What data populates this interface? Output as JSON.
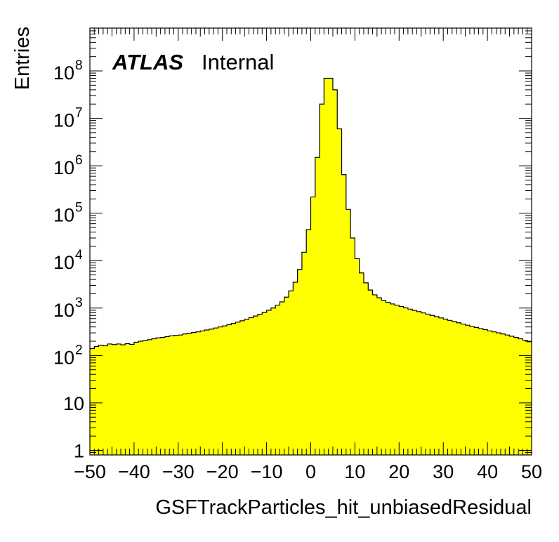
{
  "chart_data": {
    "type": "histogram",
    "title": "",
    "xlabel": "GSFTrackParticles_hit_unbiasedResidual",
    "ylabel": "Entries",
    "xlim": [
      -50,
      50
    ],
    "ylim": [
      0.8,
      800000000
    ],
    "log_y": true,
    "grid": false,
    "fill_color": "#ffff00",
    "line_color": "#000000",
    "x_ticks": [
      -50,
      -40,
      -30,
      -20,
      -10,
      0,
      10,
      20,
      30,
      40,
      50
    ],
    "x_tick_labels": [
      "−50",
      "−40",
      "−30",
      "−20",
      "−10",
      "0",
      "10",
      "20",
      "30",
      "40",
      "50"
    ],
    "y_ticks": [
      {
        "value": 1,
        "base": "1",
        "exp": ""
      },
      {
        "value": 10,
        "base": "10",
        "exp": ""
      },
      {
        "value": 100,
        "base": "10",
        "exp": "2"
      },
      {
        "value": 1000,
        "base": "10",
        "exp": "3"
      },
      {
        "value": 10000,
        "base": "10",
        "exp": "4"
      },
      {
        "value": 100000,
        "base": "10",
        "exp": "5"
      },
      {
        "value": 1000000,
        "base": "10",
        "exp": "6"
      },
      {
        "value": 10000000,
        "base": "10",
        "exp": "7"
      },
      {
        "value": 100000000,
        "base": "10",
        "exp": "8"
      }
    ],
    "label": {
      "experiment": "ATLAS",
      "status": "Internal"
    },
    "bin_width": 1,
    "bin_edges_start": -50,
    "values": [
      140,
      155,
      165,
      160,
      175,
      170,
      175,
      168,
      178,
      172,
      190,
      200,
      205,
      215,
      225,
      235,
      240,
      250,
      260,
      265,
      270,
      285,
      295,
      305,
      315,
      330,
      345,
      360,
      380,
      400,
      420,
      445,
      475,
      505,
      540,
      580,
      625,
      680,
      740,
      810,
      900,
      1000,
      1150,
      1350,
      1700,
      2300,
      3500,
      6500,
      15000,
      45000,
      220000,
      1500000,
      20000000,
      70000000,
      70000000,
      40000000,
      6000000,
      650000,
      120000,
      30000,
      11000,
      5500,
      3400,
      2400,
      1900,
      1650,
      1450,
      1320,
      1220,
      1150,
      1080,
      1010,
      950,
      890,
      840,
      790,
      745,
      700,
      660,
      620,
      585,
      550,
      520,
      490,
      460,
      435,
      410,
      390,
      370,
      350,
      330,
      315,
      300,
      285,
      270,
      255,
      240,
      225,
      210,
      195
    ]
  }
}
